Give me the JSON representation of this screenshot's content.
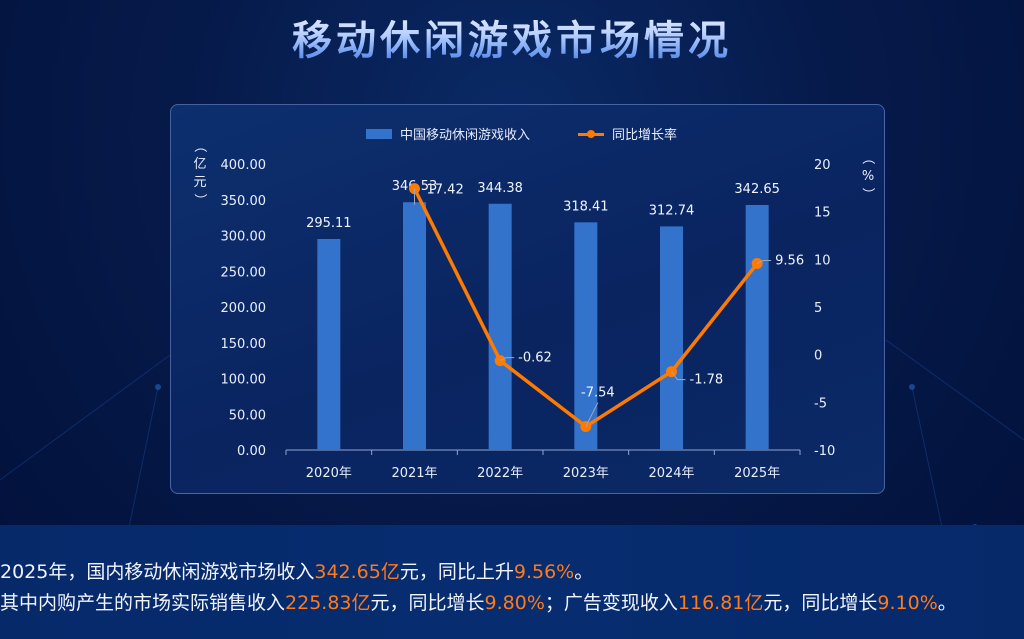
{
  "page": {
    "title": "移动休闲游戏市场情况"
  },
  "legend": {
    "bar_label": "中国移动休闲游戏收入",
    "line_label": "同比增长率"
  },
  "axes": {
    "left_unit": "（亿元）",
    "right_unit": "（%）",
    "left_ticks": [
      "400.00",
      "350.00",
      "300.00",
      "250.00",
      "200.00",
      "150.00",
      "100.00",
      "50.00",
      "0.00"
    ],
    "right_ticks": [
      "20",
      "15",
      "10",
      "5",
      "0",
      "-5",
      "-10"
    ]
  },
  "colors": {
    "bar": "#3473cc",
    "line": "#ff7a00",
    "highlight_text": "#ff7a1a",
    "panel_bg": "#0b2962",
    "page_bg": "#061a4a"
  },
  "chart_data": {
    "type": "bar",
    "title": "移动休闲游戏市场情况",
    "categories": [
      "2020年",
      "2021年",
      "2022年",
      "2023年",
      "2024年",
      "2025年"
    ],
    "series": [
      {
        "name": "中国移动休闲游戏收入",
        "type": "bar",
        "axis": "left",
        "unit": "亿元",
        "values": [
          295.11,
          346.53,
          344.38,
          318.41,
          312.74,
          342.65
        ],
        "labels": [
          "295.11",
          "346.53",
          "344.38",
          "318.41",
          "312.74",
          "342.65"
        ]
      },
      {
        "name": "同比增长率",
        "type": "line",
        "axis": "right",
        "unit": "%",
        "values": [
          null,
          17.42,
          -0.62,
          -7.54,
          -1.78,
          9.56
        ],
        "labels": [
          "",
          "17.42",
          "-0.62",
          "-7.54",
          "-1.78",
          "9.56"
        ]
      }
    ],
    "xlabel": "",
    "ylabel": "亿元",
    "ylabel_right": "%",
    "ylim": [
      0,
      400
    ],
    "ylim_right": [
      -10,
      20
    ],
    "grid": false,
    "legend_position": "top"
  },
  "footer": {
    "line1": [
      {
        "text": "2025年，国内移动休闲游戏市场收入",
        "hl": false
      },
      {
        "text": "342.65亿",
        "hl": true
      },
      {
        "text": "元，同比上升",
        "hl": false
      },
      {
        "text": "9.56%",
        "hl": true
      },
      {
        "text": "。",
        "hl": false
      }
    ],
    "line2": [
      {
        "text": "其中内购产生的市场实际销售收入",
        "hl": false
      },
      {
        "text": "225.83亿",
        "hl": true
      },
      {
        "text": "元，同比增长",
        "hl": false
      },
      {
        "text": "9.80%",
        "hl": true
      },
      {
        "text": "；广告变现收入",
        "hl": false
      },
      {
        "text": "116.81亿",
        "hl": true
      },
      {
        "text": "元，同比增长",
        "hl": false
      },
      {
        "text": "9.10%",
        "hl": true
      },
      {
        "text": "。",
        "hl": false
      }
    ]
  }
}
